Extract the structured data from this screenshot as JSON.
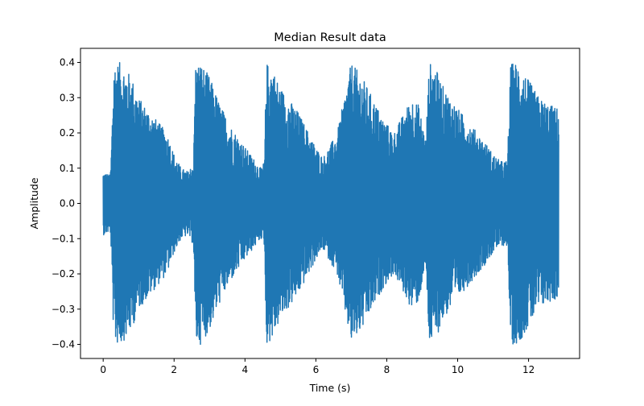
{
  "chart_data": {
    "type": "line",
    "title": "Median Result data",
    "xlabel": "Time (s)",
    "ylabel": "Amplitude",
    "xlim": [
      -0.64,
      13.44
    ],
    "ylim": [
      -0.44,
      0.44
    ],
    "xticks": [
      0,
      2,
      4,
      6,
      8,
      10,
      12
    ],
    "yticks": [
      -0.4,
      -0.3,
      -0.2,
      -0.1,
      0.0,
      0.1,
      0.2,
      0.3,
      0.4
    ],
    "x_tick_labels": [
      "0",
      "2",
      "4",
      "6",
      "8",
      "10",
      "12"
    ],
    "y_tick_labels": [
      "−0.4",
      "−0.3",
      "−0.2",
      "−0.1",
      "0.0",
      "0.1",
      "0.2",
      "0.3",
      "0.4"
    ],
    "grid": false,
    "legend": "none",
    "series_color": "#1f77b4",
    "series": [
      {
        "kind": "waveform_envelope",
        "x": [
          0.0,
          0.2,
          0.22,
          0.3,
          0.5,
          0.8,
          1.0,
          1.4,
          1.8,
          2.0,
          2.2,
          2.4,
          2.55,
          2.6,
          2.75,
          3.0,
          3.3,
          3.6,
          4.0,
          4.3,
          4.45,
          4.55,
          4.6,
          4.75,
          5.0,
          5.5,
          5.8,
          6.0,
          6.2,
          6.6,
          7.0,
          7.3,
          7.6,
          7.9,
          8.2,
          8.5,
          8.7,
          8.9,
          9.1,
          9.2,
          9.35,
          9.6,
          10.0,
          10.4,
          10.8,
          11.0,
          11.2,
          11.4,
          11.5,
          11.7,
          12.0,
          12.3,
          12.6,
          12.85
        ],
        "upper": [
          0.09,
          0.08,
          0.12,
          0.4,
          0.4,
          0.36,
          0.3,
          0.25,
          0.2,
          0.14,
          0.1,
          0.09,
          0.12,
          0.4,
          0.4,
          0.36,
          0.28,
          0.22,
          0.16,
          0.12,
          0.1,
          0.12,
          0.4,
          0.39,
          0.33,
          0.26,
          0.2,
          0.16,
          0.13,
          0.2,
          0.4,
          0.36,
          0.3,
          0.24,
          0.2,
          0.26,
          0.3,
          0.28,
          0.18,
          0.4,
          0.39,
          0.33,
          0.27,
          0.22,
          0.17,
          0.14,
          0.12,
          0.12,
          0.4,
          0.4,
          0.35,
          0.3,
          0.28,
          0.27
        ],
        "lower": [
          -0.09,
          -0.08,
          -0.12,
          -0.4,
          -0.4,
          -0.36,
          -0.3,
          -0.25,
          -0.2,
          -0.14,
          -0.1,
          -0.09,
          -0.12,
          -0.4,
          -0.4,
          -0.36,
          -0.28,
          -0.22,
          -0.16,
          -0.12,
          -0.1,
          -0.12,
          -0.4,
          -0.39,
          -0.33,
          -0.26,
          -0.2,
          -0.16,
          -0.13,
          -0.2,
          -0.4,
          -0.36,
          -0.3,
          -0.24,
          -0.2,
          -0.26,
          -0.3,
          -0.28,
          -0.18,
          -0.4,
          -0.39,
          -0.33,
          -0.27,
          -0.22,
          -0.17,
          -0.14,
          -0.12,
          -0.12,
          -0.4,
          -0.4,
          -0.35,
          -0.3,
          -0.28,
          -0.27
        ]
      }
    ]
  }
}
